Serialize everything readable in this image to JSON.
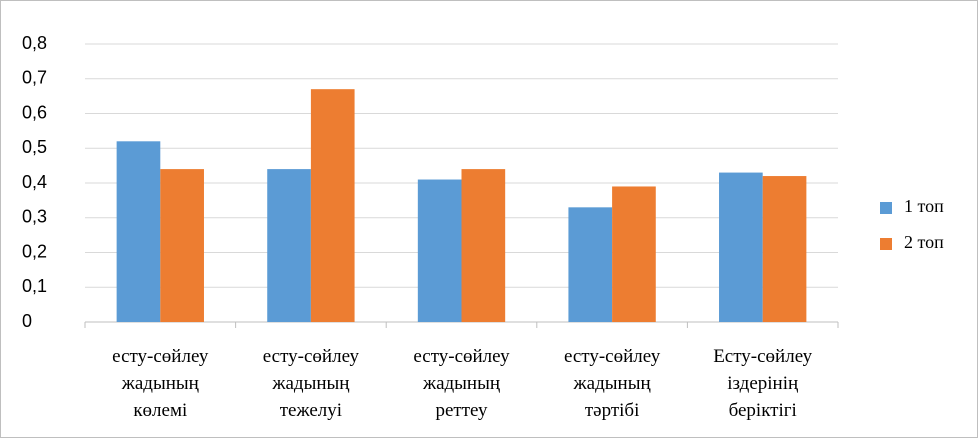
{
  "chart_data": {
    "type": "bar",
    "categories": [
      "есту-сөйлеу жадының көлемі",
      "есту-сөйлеу жадының тежелуі",
      "есту-сөйлеу жадының реттеу",
      "есту-сөйлеу жадының тәртібі",
      "Есту-сөйлеу іздерінің беріктігі"
    ],
    "series": [
      {
        "name": "1 топ",
        "color": "#5b9bd5",
        "values": [
          0.52,
          0.44,
          0.41,
          0.33,
          0.43
        ]
      },
      {
        "name": "2 топ",
        "color": "#ed7d31",
        "values": [
          0.44,
          0.67,
          0.44,
          0.39,
          0.42
        ]
      }
    ],
    "ylim": [
      0,
      0.8
    ],
    "yticks": [
      0,
      {
        "value": 0.1,
        "label": "0,1"
      },
      {
        "value": 0.2,
        "label": "0,2"
      },
      {
        "value": 0.3,
        "label": "0,3"
      },
      {
        "value": 0.4,
        "label": "0,4"
      },
      {
        "value": 0.5,
        "label": "0,5"
      },
      {
        "value": 0.6,
        "label": "0,6"
      },
      {
        "value": 0.7,
        "label": "0,7"
      },
      {
        "value": 0.8,
        "label": "0,8"
      }
    ],
    "grid": true,
    "legend": "right"
  }
}
